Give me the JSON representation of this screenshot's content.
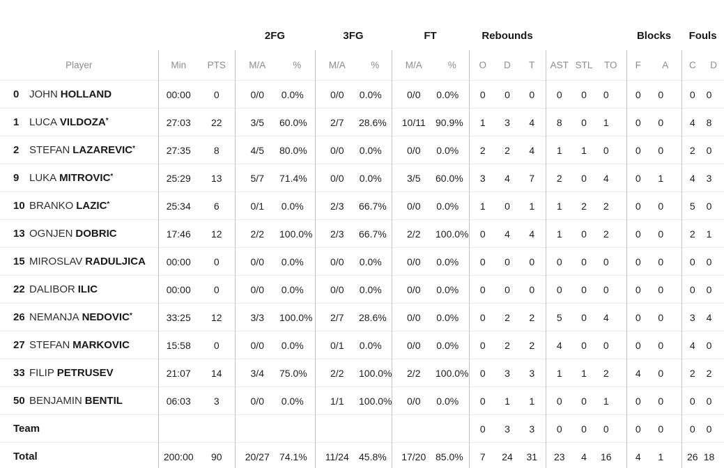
{
  "table": {
    "groups": {
      "fg2": "2FG",
      "fg3": "3FG",
      "ft": "FT",
      "rebounds": "Rebounds",
      "blocks": "Blocks",
      "fouls": "Fouls"
    },
    "headers": {
      "player": "Player",
      "min": "Min",
      "pts": "PTS",
      "ma": "M/A",
      "pct": "%",
      "reb_o": "O",
      "reb_d": "D",
      "reb_t": "T",
      "ast": "AST",
      "stl": "STL",
      "to": "TO",
      "blk_f": "F",
      "blk_a": "A",
      "foul_c": "C",
      "foul_d": "D"
    },
    "starter_mark": "*",
    "rows": [
      {
        "number": "0",
        "first": "JOHN",
        "last": "HOLLAND",
        "starter": false,
        "cells": [
          "00:00",
          "0",
          "0/0",
          "0.0%",
          "0/0",
          "0.0%",
          "0/0",
          "0.0%",
          "0",
          "0",
          "0",
          "0",
          "0",
          "0",
          "0",
          "0",
          "0",
          "0"
        ]
      },
      {
        "number": "1",
        "first": "LUCA",
        "last": "VILDOZA",
        "starter": true,
        "cells": [
          "27:03",
          "22",
          "3/5",
          "60.0%",
          "2/7",
          "28.6%",
          "10/11",
          "90.9%",
          "1",
          "3",
          "4",
          "8",
          "0",
          "1",
          "0",
          "0",
          "4",
          "8"
        ]
      },
      {
        "number": "2",
        "first": "STEFAN",
        "last": "LAZAREVIC",
        "starter": true,
        "cells": [
          "27:35",
          "8",
          "4/5",
          "80.0%",
          "0/0",
          "0.0%",
          "0/0",
          "0.0%",
          "2",
          "2",
          "4",
          "1",
          "1",
          "0",
          "0",
          "0",
          "2",
          "0"
        ]
      },
      {
        "number": "9",
        "first": "LUKA",
        "last": "MITROVIC",
        "starter": true,
        "cells": [
          "25:29",
          "13",
          "5/7",
          "71.4%",
          "0/0",
          "0.0%",
          "3/5",
          "60.0%",
          "3",
          "4",
          "7",
          "2",
          "0",
          "4",
          "0",
          "1",
          "4",
          "3"
        ]
      },
      {
        "number": "10",
        "first": "BRANKO",
        "last": "LAZIC",
        "starter": true,
        "cells": [
          "25:34",
          "6",
          "0/1",
          "0.0%",
          "2/3",
          "66.7%",
          "0/0",
          "0.0%",
          "1",
          "0",
          "1",
          "1",
          "2",
          "2",
          "0",
          "0",
          "5",
          "0"
        ]
      },
      {
        "number": "13",
        "first": "OGNJEN",
        "last": "DOBRIC",
        "starter": false,
        "cells": [
          "17:46",
          "12",
          "2/2",
          "100.0%",
          "2/3",
          "66.7%",
          "2/2",
          "100.0%",
          "0",
          "4",
          "4",
          "1",
          "0",
          "2",
          "0",
          "0",
          "2",
          "1"
        ]
      },
      {
        "number": "15",
        "first": "MIROSLAV",
        "last": "RADULJICA",
        "starter": false,
        "cells": [
          "00:00",
          "0",
          "0/0",
          "0.0%",
          "0/0",
          "0.0%",
          "0/0",
          "0.0%",
          "0",
          "0",
          "0",
          "0",
          "0",
          "0",
          "0",
          "0",
          "0",
          "0"
        ]
      },
      {
        "number": "22",
        "first": "DALIBOR",
        "last": "ILIC",
        "starter": false,
        "cells": [
          "00:00",
          "0",
          "0/0",
          "0.0%",
          "0/0",
          "0.0%",
          "0/0",
          "0.0%",
          "0",
          "0",
          "0",
          "0",
          "0",
          "0",
          "0",
          "0",
          "0",
          "0"
        ]
      },
      {
        "number": "26",
        "first": "NEMANJA",
        "last": "NEDOVIC",
        "starter": true,
        "cells": [
          "33:25",
          "12",
          "3/3",
          "100.0%",
          "2/7",
          "28.6%",
          "0/0",
          "0.0%",
          "0",
          "2",
          "2",
          "5",
          "0",
          "4",
          "0",
          "0",
          "3",
          "4"
        ]
      },
      {
        "number": "27",
        "first": "STEFAN",
        "last": "MARKOVIC",
        "starter": false,
        "cells": [
          "15:58",
          "0",
          "0/0",
          "0.0%",
          "0/1",
          "0.0%",
          "0/0",
          "0.0%",
          "0",
          "2",
          "2",
          "4",
          "0",
          "0",
          "0",
          "0",
          "4",
          "0"
        ]
      },
      {
        "number": "33",
        "first": "FILIP",
        "last": "PETRUSEV",
        "starter": false,
        "cells": [
          "21:07",
          "14",
          "3/4",
          "75.0%",
          "2/2",
          "100.0%",
          "2/2",
          "100.0%",
          "0",
          "3",
          "3",
          "1",
          "1",
          "2",
          "4",
          "0",
          "2",
          "2"
        ]
      },
      {
        "number": "50",
        "first": "BENJAMIN",
        "last": "BENTIL",
        "starter": false,
        "cells": [
          "06:03",
          "3",
          "0/0",
          "0.0%",
          "1/1",
          "100.0%",
          "0/0",
          "0.0%",
          "0",
          "1",
          "1",
          "0",
          "0",
          "1",
          "0",
          "0",
          "0",
          "0"
        ]
      }
    ],
    "team_row": {
      "label": "Team",
      "cells": [
        "",
        "",
        "",
        "",
        "",
        "",
        "",
        "",
        "0",
        "3",
        "3",
        "0",
        "0",
        "0",
        "0",
        "0",
        "0",
        "0"
      ]
    },
    "total_row": {
      "label": "Total",
      "cells": [
        "200:00",
        "90",
        "20/27",
        "74.1%",
        "11/24",
        "45.8%",
        "17/20",
        "85.0%",
        "7",
        "24",
        "31",
        "23",
        "4",
        "16",
        "4",
        "1",
        "26",
        "18"
      ]
    }
  }
}
